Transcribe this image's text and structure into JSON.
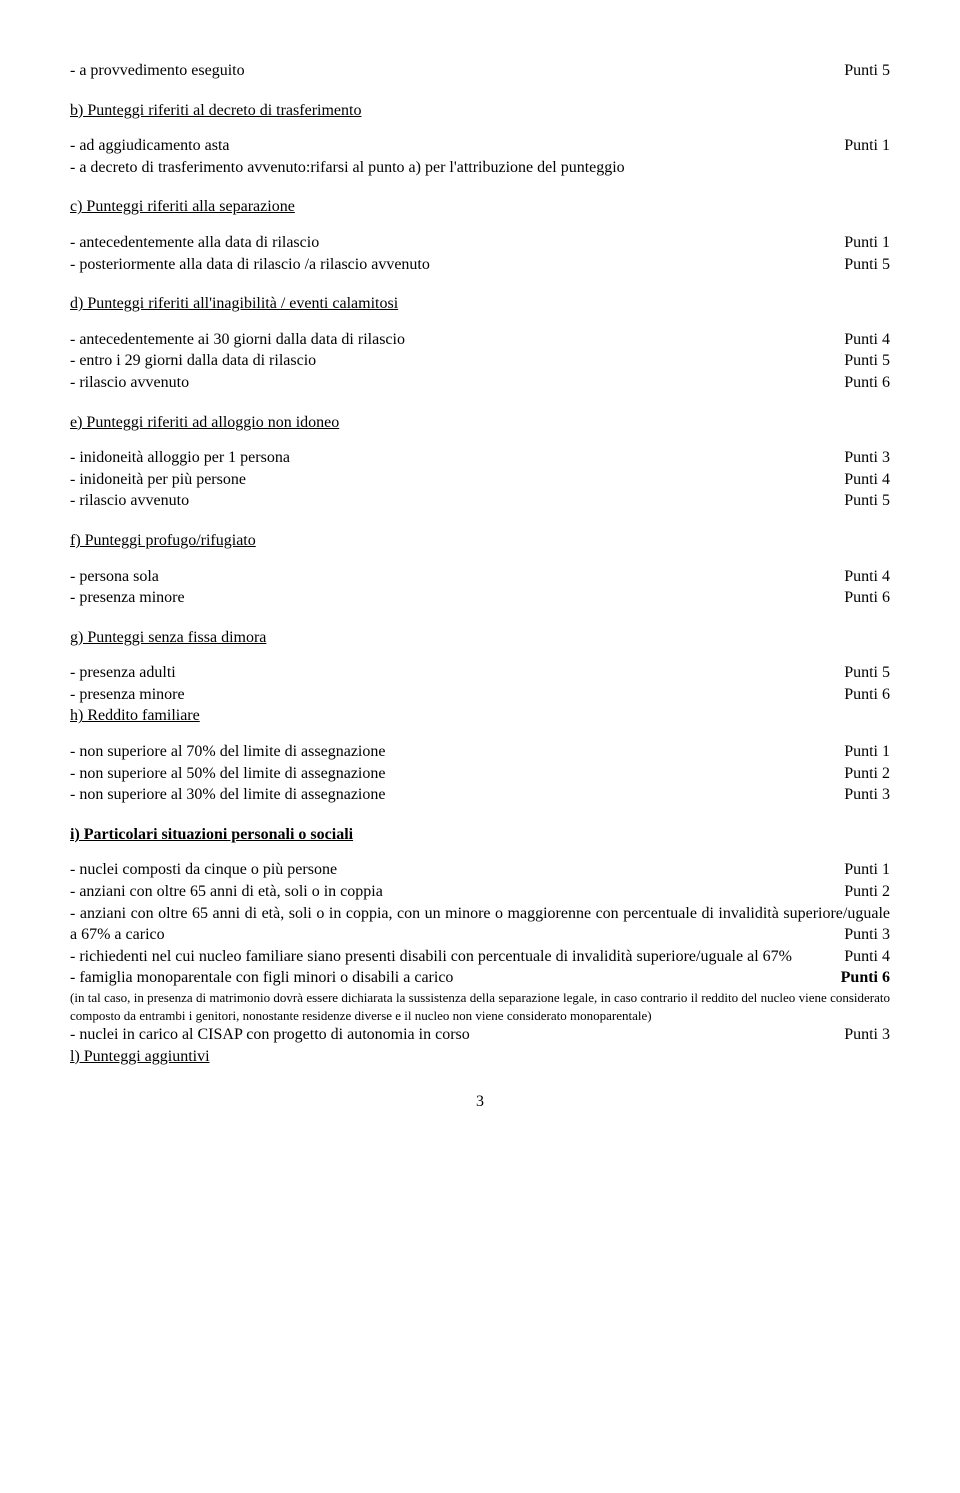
{
  "a_post": {
    "text": "- a provvedimento eseguito",
    "pts": "Punti 5"
  },
  "b": {
    "title": "b) Punteggi riferiti al decreto di trasferimento",
    "items": [
      {
        "text": "- ad aggiudicamento asta",
        "pts": "Punti 1"
      },
      {
        "text": "- a decreto di trasferimento avvenuto:rifarsi al punto a) per l'attribuzione del punteggio",
        "pts": ""
      }
    ]
  },
  "c": {
    "title": "c) Punteggi riferiti alla separazione",
    "items": [
      {
        "text": "- antecedentemente alla data di rilascio",
        "pts": "Punti 1"
      },
      {
        "text": "- posteriormente alla data di rilascio /a rilascio avvenuto",
        "pts": "Punti 5"
      }
    ]
  },
  "d": {
    "title": "d) Punteggi riferiti all'inagibilità / eventi calamitosi",
    "items": [
      {
        "text": "- antecedentemente ai 30 giorni dalla data di rilascio",
        "pts": "Punti 4"
      },
      {
        "text": "- entro i 29 giorni dalla data di rilascio",
        "pts": "Punti 5"
      },
      {
        "text": "- rilascio avvenuto",
        "pts": "Punti 6"
      }
    ]
  },
  "e": {
    "title": "e) Punteggi riferiti ad alloggio non idoneo",
    "items": [
      {
        "text": "- inidoneità alloggio per 1 persona",
        "pts": "Punti 3"
      },
      {
        "text": "- inidoneità per più persone",
        "pts": "Punti 4"
      },
      {
        "text": "- rilascio avvenuto",
        "pts": "Punti 5"
      }
    ]
  },
  "f": {
    "title": "f) Punteggi profugo/rifugiato",
    "items": [
      {
        "text": "- persona sola",
        "pts": "Punti 4"
      },
      {
        "text": "- presenza minore",
        "pts": "Punti 6"
      }
    ]
  },
  "g": {
    "title": "g) Punteggi senza fissa dimora",
    "items": [
      {
        "text": "- presenza adulti",
        "pts": "Punti 5"
      },
      {
        "text": "- presenza minore",
        "pts": "Punti 6"
      }
    ]
  },
  "h": {
    "title": "h) Reddito familiare",
    "items": [
      {
        "text": "- non superiore al 70% del limite di assegnazione",
        "pts": "Punti 1"
      },
      {
        "text": "- non superiore al 50% del limite di assegnazione",
        "pts": "Punti 2"
      },
      {
        "text": "- non superiore al 30% del limite di assegnazione",
        "pts": "Punti 3"
      }
    ]
  },
  "i": {
    "title": "i) Particolari situazioni personali o sociali",
    "row1": {
      "text": "- nuclei composti da cinque o più persone",
      "pts": "Punti 1"
    },
    "row2": {
      "text": "- anziani con oltre 65 anni di età, soli o in coppia",
      "pts": "Punti 2"
    },
    "row3_left": "- anziani con oltre 65 anni di età, soli o in coppia, con un minore o maggiorenne con percentuale di invalidità superiore/uguale a  67% a carico",
    "row3_pts": "Punti 3",
    "row4_left": "- richiedenti nel cui nucleo familiare siano presenti disabili con percentuale di invalidità superiore/uguale al 67%",
    "row4_pts": "Punti 4",
    "row5": {
      "text": "- famiglia monoparentale con figli minori o disabili a carico",
      "pts": "Punti 6"
    },
    "note": "(in tal caso, in presenza di matrimonio dovrà essere dichiarata la sussistenza della separazione legale, in caso contrario il reddito del nucleo viene considerato composto da entrambi i genitori, nonostante residenze diverse e il nucleo non viene considerato monoparentale)",
    "row6": {
      "text": "- nuclei in carico al CISAP con progetto di autonomia in corso",
      "pts": "Punti 3"
    }
  },
  "l": {
    "title": "l) Punteggi aggiuntivi"
  },
  "page": "3"
}
